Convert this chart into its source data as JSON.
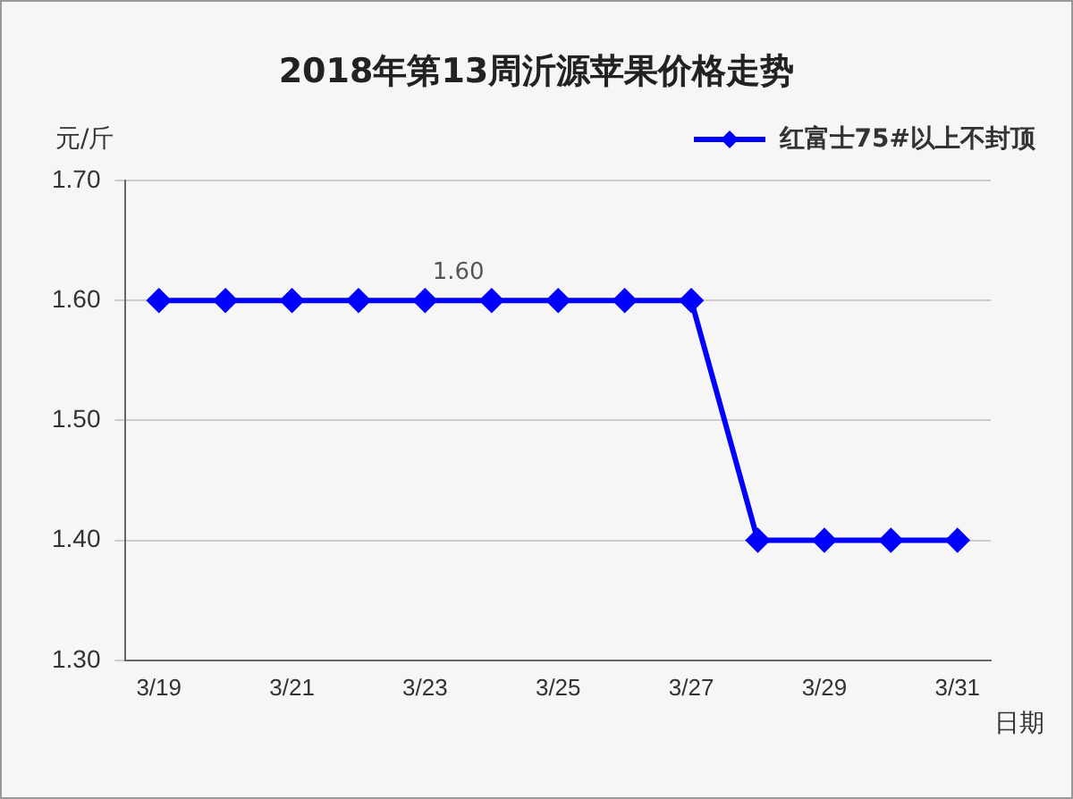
{
  "chart_data": {
    "type": "line",
    "title": "2018年第13周沂源苹果价格走势",
    "ylabel": "元/斤",
    "xlabel": "日期",
    "categories": [
      "3/19",
      null,
      "3/21",
      null,
      "3/23",
      null,
      "3/25",
      null,
      "3/27",
      null,
      "3/29",
      null,
      "3/31"
    ],
    "series": [
      {
        "name": "红富士75#以上不封顶",
        "color": "#0000ff",
        "values": [
          1.6,
          1.6,
          1.6,
          1.6,
          1.6,
          1.6,
          1.6,
          1.6,
          1.6,
          1.4,
          1.4,
          1.4,
          1.4
        ]
      }
    ],
    "ylim": [
      1.3,
      1.7
    ],
    "yticks": [
      {
        "value": 1.3,
        "label": "1.30"
      },
      {
        "value": 1.4,
        "label": "1.40"
      },
      {
        "value": 1.5,
        "label": "1.50"
      },
      {
        "value": 1.6,
        "label": "1.60"
      },
      {
        "value": 1.7,
        "label": "1.70"
      }
    ],
    "annotations": [
      "1.60"
    ],
    "grid": "y",
    "legend": "top right",
    "marker": "diamond",
    "line_style": "solid"
  }
}
